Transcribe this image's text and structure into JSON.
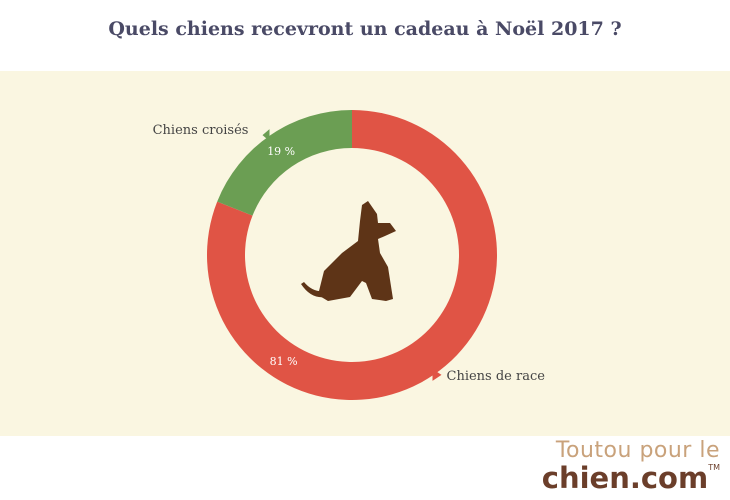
{
  "chart_data": {
    "type": "pie",
    "title": "Quels chiens recevront un cadeau à Noël 2017 ?",
    "series": [
      {
        "values": [
          {
            "label": "Chiens de race",
            "value": 81,
            "value_label": "81 %",
            "color": "#e05445"
          },
          {
            "label": "Chiens croisés",
            "value": 19,
            "value_label": "19 %",
            "color": "#6b9e53"
          }
        ]
      }
    ],
    "donut": true,
    "center_icon": "sitting-dog-icon",
    "background_color": "#faf6e1"
  },
  "logo": {
    "line1": "Toutou pour le",
    "line2": "chien.com",
    "suffix": "TM"
  }
}
